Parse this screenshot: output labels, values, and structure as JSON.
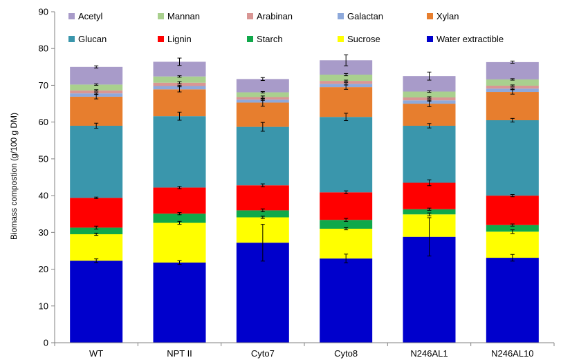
{
  "chart_data": {
    "type": "bar",
    "stacked": true,
    "title": "",
    "xlabel": "",
    "ylabel": "Biomass compostion (g/100 g DM)",
    "ylim": [
      0,
      90
    ],
    "yticks": [
      0,
      10,
      20,
      30,
      40,
      50,
      60,
      70,
      80,
      90
    ],
    "grid": false,
    "legend_position": "top",
    "categories": [
      "WT",
      "NPT II",
      "Cyto7",
      "Cyto8",
      "N246AL1",
      "N246AL10"
    ],
    "series": [
      {
        "name": "Water extractible",
        "color": "#0000CC",
        "values": [
          22.3,
          21.8,
          27.2,
          22.9,
          28.8,
          23.1
        ],
        "errors": [
          0.5,
          0.5,
          5.0,
          1.2,
          5.2,
          0.9
        ]
      },
      {
        "name": "Sucrose",
        "color": "#FFFF00",
        "values": [
          7.2,
          10.8,
          6.9,
          8.1,
          6.1,
          7.1
        ],
        "errors": [
          0.3,
          0.4,
          0.3,
          0.3,
          0.4,
          0.5
        ]
      },
      {
        "name": "Starch",
        "color": "#10A84A",
        "values": [
          1.8,
          2.5,
          1.9,
          2.4,
          1.4,
          1.8
        ],
        "errors": [
          0.4,
          0.3,
          0.4,
          0.4,
          0.3,
          0.3
        ]
      },
      {
        "name": "Lignin",
        "color": "#FF0000",
        "values": [
          8.1,
          7.1,
          6.8,
          7.5,
          7.2,
          8.0
        ],
        "errors": [
          0.2,
          0.3,
          0.4,
          0.4,
          0.8,
          0.3
        ]
      },
      {
        "name": "Glucan",
        "color": "#3A96AC",
        "values": [
          19.6,
          19.4,
          15.9,
          20.5,
          15.5,
          20.5
        ],
        "errors": [
          0.7,
          1.1,
          1.2,
          1.0,
          0.6,
          0.5
        ]
      },
      {
        "name": "Xylan",
        "color": "#E77E2E",
        "values": [
          7.9,
          7.3,
          6.6,
          8.1,
          6.0,
          7.7
        ],
        "errors": [
          0.6,
          0.7,
          1.0,
          0.6,
          0.8,
          0.6
        ]
      },
      {
        "name": "Galactan",
        "color": "#8EA9DB",
        "values": [
          0.9,
          0.9,
          0.8,
          0.9,
          0.9,
          0.9
        ],
        "errors": [
          0.2,
          0.2,
          0.2,
          0.3,
          0.2,
          0.2
        ]
      },
      {
        "name": "Arabinan",
        "color": "#D99694",
        "values": [
          0.8,
          0.9,
          0.7,
          0.8,
          0.8,
          0.8
        ],
        "errors": [
          0.2,
          0.3,
          0.3,
          0.2,
          0.2,
          0.2
        ]
      },
      {
        "name": "Mannan",
        "color": "#A9D08E",
        "values": [
          1.6,
          1.7,
          1.3,
          1.7,
          1.6,
          1.7
        ],
        "errors": [
          0.2,
          0.2,
          0.2,
          0.3,
          0.2,
          0.2
        ]
      },
      {
        "name": "Acetyl",
        "color": "#A89BC9",
        "values": [
          4.8,
          4.0,
          3.6,
          3.9,
          4.2,
          4.7
        ],
        "errors": [
          0.3,
          1.0,
          0.4,
          1.5,
          1.1,
          0.3
        ]
      }
    ],
    "legend_order": [
      "Acetyl",
      "Mannan",
      "Arabinan",
      "Galactan",
      "Xylan",
      "Glucan",
      "Lignin",
      "Starch",
      "Sucrose",
      "Water extractible"
    ]
  }
}
